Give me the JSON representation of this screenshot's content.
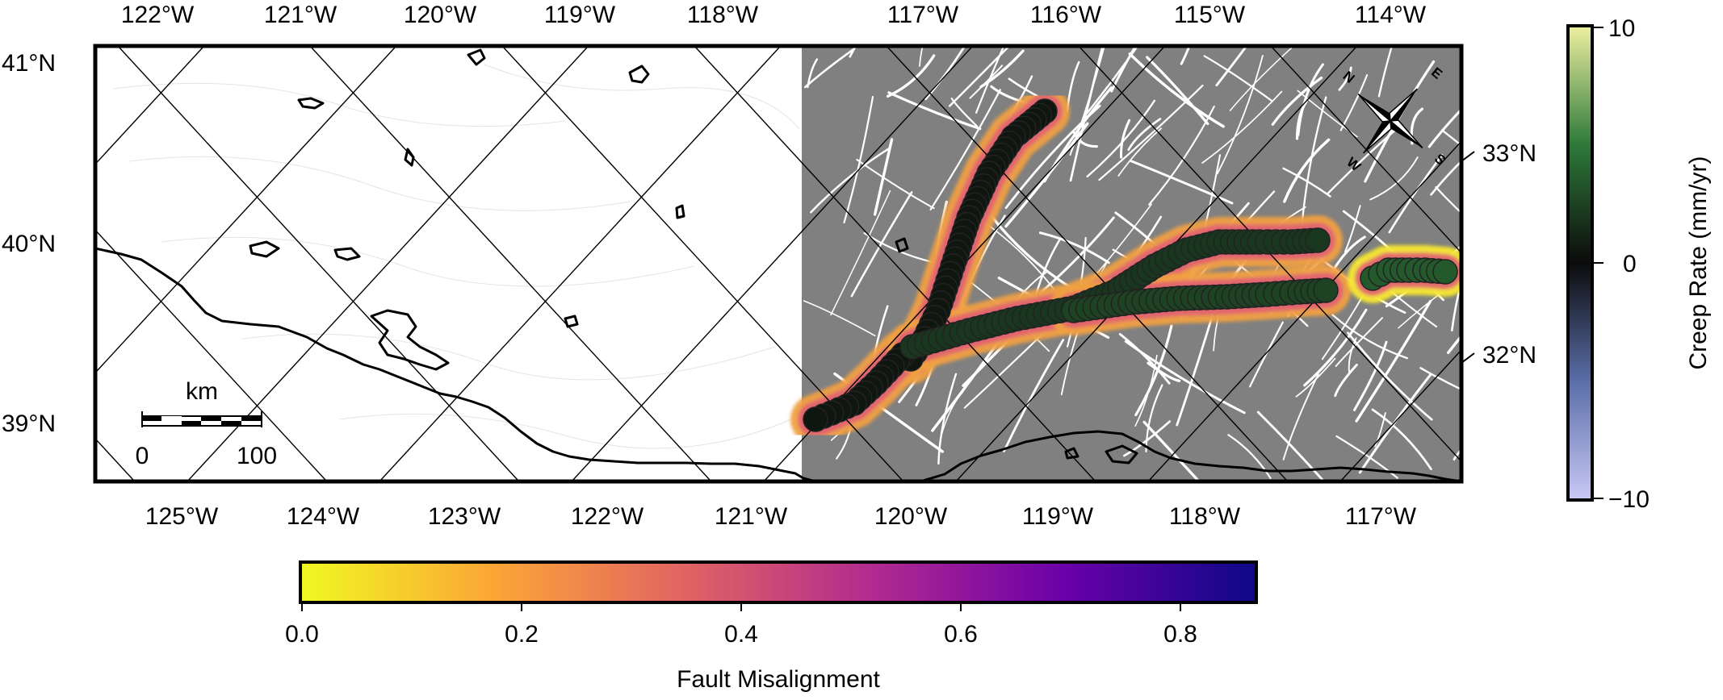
{
  "map": {
    "top_ticks": [
      "122°W",
      "121°W",
      "120°W",
      "119°W",
      "118°W",
      "117°W",
      "116°W",
      "115°W",
      "114°W"
    ],
    "bottom_ticks": [
      "125°W",
      "124°W",
      "123°W",
      "122°W",
      "121°W",
      "120°W",
      "119°W",
      "118°W",
      "117°W"
    ],
    "left_ticks": [
      "41°N",
      "40°N",
      "39°N"
    ],
    "right_ticks": [
      "33°N",
      "32°N"
    ],
    "land_color": "#ffffff",
    "data_region_color": "#808080",
    "fault_trace_color": "#ffffff",
    "coastline_color": "#000000",
    "gridline_color": "#000000"
  },
  "scalebar": {
    "unit": "km",
    "start_label": "0",
    "end_label": "100"
  },
  "compass": {
    "n": "N",
    "e": "E",
    "s": "S",
    "w": "W",
    "icon": "compass-rose-icon"
  },
  "colorbar_creep": {
    "label": "Creep Rate (mm/yr)",
    "ticks": [
      "10",
      "0",
      "−10"
    ],
    "range": [
      -10,
      10
    ],
    "colors": [
      "#c9c9f5",
      "#5a6ea8",
      "#0b0b0b",
      "#2e7a3a",
      "#eef0a0"
    ]
  },
  "colorbar_misalign": {
    "label": "Fault Misalignment",
    "ticks": [
      "0.0",
      "0.2",
      "0.4",
      "0.6",
      "0.8"
    ],
    "range": [
      0,
      0.87
    ],
    "colors": [
      "#f0f921",
      "#fca636",
      "#e16462",
      "#b12a90",
      "#6a00a8",
      "#0d0887"
    ]
  },
  "creep_points": {
    "marker_edge": "#222222",
    "branches": [
      {
        "name": "",
        "creep_rate": 0.5,
        "path": [
          [
            1294,
            138
          ],
          [
            1255,
            170
          ],
          [
            1225,
            215
          ],
          [
            1200,
            270
          ],
          [
            1180,
            330
          ],
          [
            1162,
            385
          ],
          [
            1145,
            420
          ],
          [
            1128,
            445
          ]
        ]
      },
      {
        "name": "",
        "creep_rate": 0.5,
        "path": [
          [
            1118,
            440
          ],
          [
            1085,
            475
          ],
          [
            1058,
            500
          ],
          [
            1030,
            512
          ],
          [
            1010,
            520
          ]
        ]
      },
      {
        "name": "",
        "creep_rate": 2.0,
        "path": [
          [
            1130,
            430
          ],
          [
            1200,
            410
          ],
          [
            1260,
            395
          ],
          [
            1330,
            382
          ],
          [
            1380,
            362
          ],
          [
            1430,
            330
          ],
          [
            1470,
            310
          ],
          [
            1510,
            300
          ],
          [
            1560,
            300
          ],
          [
            1600,
            300
          ],
          [
            1632,
            298
          ]
        ]
      },
      {
        "name": "",
        "creep_rate": 2.5,
        "path": [
          [
            1330,
            385
          ],
          [
            1400,
            375
          ],
          [
            1460,
            370
          ],
          [
            1520,
            368
          ],
          [
            1570,
            365
          ],
          [
            1610,
            362
          ],
          [
            1642,
            360
          ]
        ]
      },
      {
        "name": "",
        "creep_rate": 3.5,
        "path": [
          [
            1700,
            345
          ],
          [
            1720,
            335
          ],
          [
            1745,
            335
          ],
          [
            1765,
            335
          ],
          [
            1790,
            337
          ]
        ]
      }
    ]
  }
}
